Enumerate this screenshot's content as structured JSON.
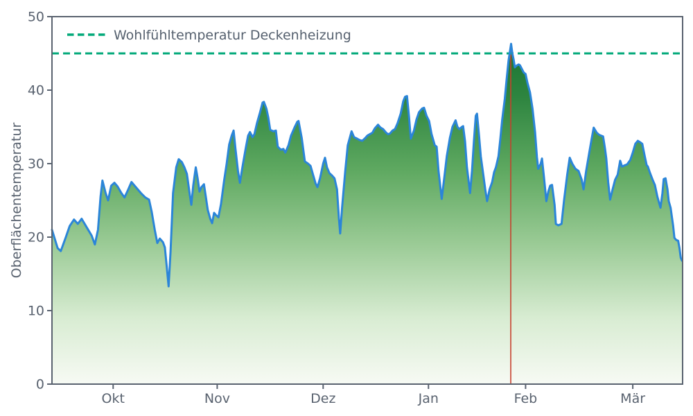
{
  "chart_data": {
    "type": "area",
    "title": "",
    "xlabel": "",
    "ylabel": "Oberflächentemperatur",
    "ylim": [
      0,
      50
    ],
    "grid": false,
    "y_ticks": [
      0,
      10,
      20,
      30,
      40,
      50
    ],
    "x_ticks": [
      {
        "label": "Okt",
        "pos": 0.097
      },
      {
        "label": "Nov",
        "pos": 0.262
      },
      {
        "label": "Dez",
        "pos": 0.43
      },
      {
        "label": "Jan",
        "pos": 0.597
      },
      {
        "label": "Feb",
        "pos": 0.751
      },
      {
        "label": "Mär",
        "pos": 0.921
      }
    ],
    "legend": {
      "label": "Wohlfühltemperatur Deckenheizung",
      "position": "upper-left",
      "style": "dashed"
    },
    "reference_line": {
      "value": 45,
      "style": "dashed",
      "color": "#00A878",
      "label": "Wohlfühltemperatur Deckenheizung"
    },
    "event_line": {
      "pos": 0.7275,
      "top_value": 46.3,
      "color": "#C7402E"
    },
    "colors": {
      "line": "#2B85D8",
      "reference": "#00A878",
      "event": "#C7402E",
      "axis": "#59626F",
      "gradient_stops": [
        [
          "0%",
          "#0F6A2B"
        ],
        [
          "22%",
          "#2E8540"
        ],
        [
          "42%",
          "#5FA961"
        ],
        [
          "62%",
          "#9BCB96"
        ],
        [
          "82%",
          "#D8ECD2"
        ],
        [
          "100%",
          "#F7FAF4"
        ]
      ]
    },
    "series": [
      {
        "name": "Oberflächentemperatur",
        "points": [
          [
            0.0,
            21.0
          ],
          [
            0.009,
            18.5
          ],
          [
            0.014,
            18.1
          ],
          [
            0.022,
            20.0
          ],
          [
            0.028,
            21.5
          ],
          [
            0.035,
            22.4
          ],
          [
            0.041,
            21.8
          ],
          [
            0.047,
            22.5
          ],
          [
            0.056,
            21.2
          ],
          [
            0.063,
            20.2
          ],
          [
            0.068,
            19.0
          ],
          [
            0.073,
            21.0
          ],
          [
            0.077,
            25.5
          ],
          [
            0.08,
            27.7
          ],
          [
            0.085,
            26.0
          ],
          [
            0.089,
            25.0
          ],
          [
            0.094,
            27.0
          ],
          [
            0.099,
            27.4
          ],
          [
            0.104,
            26.9
          ],
          [
            0.11,
            26.0
          ],
          [
            0.115,
            25.4
          ],
          [
            0.121,
            26.5
          ],
          [
            0.126,
            27.5
          ],
          [
            0.133,
            26.8
          ],
          [
            0.141,
            26.0
          ],
          [
            0.148,
            25.4
          ],
          [
            0.154,
            25.1
          ],
          [
            0.158,
            23.5
          ],
          [
            0.163,
            21.0
          ],
          [
            0.167,
            19.2
          ],
          [
            0.171,
            19.8
          ],
          [
            0.176,
            19.3
          ],
          [
            0.179,
            18.6
          ],
          [
            0.182,
            16.0
          ],
          [
            0.185,
            13.3
          ],
          [
            0.188,
            18.0
          ],
          [
            0.192,
            26.0
          ],
          [
            0.197,
            29.5
          ],
          [
            0.201,
            30.6
          ],
          [
            0.206,
            30.2
          ],
          [
            0.21,
            29.5
          ],
          [
            0.214,
            28.6
          ],
          [
            0.219,
            25.5
          ],
          [
            0.221,
            24.4
          ],
          [
            0.224,
            27.0
          ],
          [
            0.228,
            29.5
          ],
          [
            0.231,
            28.0
          ],
          [
            0.234,
            26.2
          ],
          [
            0.237,
            26.8
          ],
          [
            0.241,
            27.2
          ],
          [
            0.244,
            25.5
          ],
          [
            0.247,
            23.7
          ],
          [
            0.251,
            22.5
          ],
          [
            0.254,
            21.9
          ],
          [
            0.257,
            23.3
          ],
          [
            0.26,
            23.0
          ],
          [
            0.264,
            22.7
          ],
          [
            0.268,
            24.5
          ],
          [
            0.273,
            27.7
          ],
          [
            0.277,
            30.0
          ],
          [
            0.281,
            32.6
          ],
          [
            0.285,
            33.8
          ],
          [
            0.288,
            34.5
          ],
          [
            0.291,
            32.0
          ],
          [
            0.295,
            29.0
          ],
          [
            0.298,
            27.4
          ],
          [
            0.302,
            29.5
          ],
          [
            0.307,
            32.0
          ],
          [
            0.311,
            33.8
          ],
          [
            0.314,
            34.3
          ],
          [
            0.318,
            33.6
          ],
          [
            0.321,
            34.0
          ],
          [
            0.325,
            35.5
          ],
          [
            0.33,
            37.0
          ],
          [
            0.334,
            38.3
          ],
          [
            0.336,
            38.4
          ],
          [
            0.34,
            37.5
          ],
          [
            0.343,
            36.3
          ],
          [
            0.346,
            34.6
          ],
          [
            0.351,
            34.4
          ],
          [
            0.355,
            34.5
          ],
          [
            0.358,
            32.3
          ],
          [
            0.363,
            31.9
          ],
          [
            0.367,
            32.0
          ],
          [
            0.37,
            31.5
          ],
          [
            0.375,
            32.5
          ],
          [
            0.379,
            33.8
          ],
          [
            0.385,
            35.0
          ],
          [
            0.389,
            35.7
          ],
          [
            0.391,
            35.8
          ],
          [
            0.396,
            33.5
          ],
          [
            0.401,
            30.3
          ],
          [
            0.406,
            30.0
          ],
          [
            0.41,
            29.7
          ],
          [
            0.414,
            28.5
          ],
          [
            0.418,
            27.3
          ],
          [
            0.421,
            26.8
          ],
          [
            0.425,
            28.0
          ],
          [
            0.43,
            30.0
          ],
          [
            0.433,
            30.8
          ],
          [
            0.436,
            29.5
          ],
          [
            0.44,
            28.7
          ],
          [
            0.444,
            28.4
          ],
          [
            0.448,
            28.0
          ],
          [
            0.452,
            26.5
          ],
          [
            0.455,
            22.5
          ],
          [
            0.457,
            20.5
          ],
          [
            0.46,
            24.0
          ],
          [
            0.465,
            29.0
          ],
          [
            0.469,
            32.5
          ],
          [
            0.475,
            34.4
          ],
          [
            0.479,
            33.6
          ],
          [
            0.484,
            33.4
          ],
          [
            0.488,
            33.2
          ],
          [
            0.492,
            33.1
          ],
          [
            0.497,
            33.5
          ],
          [
            0.5,
            33.8
          ],
          [
            0.504,
            34.0
          ],
          [
            0.508,
            34.2
          ],
          [
            0.512,
            34.8
          ],
          [
            0.517,
            35.3
          ],
          [
            0.521,
            34.9
          ],
          [
            0.525,
            34.7
          ],
          [
            0.53,
            34.2
          ],
          [
            0.533,
            34.0
          ],
          [
            0.536,
            34.1
          ],
          [
            0.54,
            34.5
          ],
          [
            0.544,
            34.7
          ],
          [
            0.548,
            35.5
          ],
          [
            0.553,
            36.8
          ],
          [
            0.557,
            38.5
          ],
          [
            0.56,
            39.1
          ],
          [
            0.563,
            39.2
          ],
          [
            0.566,
            36.5
          ],
          [
            0.569,
            33.4
          ],
          [
            0.574,
            34.5
          ],
          [
            0.578,
            36.0
          ],
          [
            0.582,
            37.0
          ],
          [
            0.587,
            37.5
          ],
          [
            0.59,
            37.6
          ],
          [
            0.594,
            36.5
          ],
          [
            0.598,
            35.8
          ],
          [
            0.602,
            34.0
          ],
          [
            0.607,
            32.5
          ],
          [
            0.61,
            32.3
          ],
          [
            0.613,
            29.0
          ],
          [
            0.618,
            25.2
          ],
          [
            0.622,
            28.0
          ],
          [
            0.626,
            31.0
          ],
          [
            0.631,
            33.5
          ],
          [
            0.635,
            35.0
          ],
          [
            0.64,
            35.9
          ],
          [
            0.643,
            35.0
          ],
          [
            0.646,
            34.7
          ],
          [
            0.65,
            35.0
          ],
          [
            0.652,
            35.1
          ],
          [
            0.655,
            33.0
          ],
          [
            0.658,
            29.5
          ],
          [
            0.663,
            26.0
          ],
          [
            0.666,
            29.0
          ],
          [
            0.669,
            33.0
          ],
          [
            0.672,
            36.5
          ],
          [
            0.674,
            36.8
          ],
          [
            0.677,
            34.0
          ],
          [
            0.68,
            31.0
          ],
          [
            0.684,
            28.5
          ],
          [
            0.687,
            26.5
          ],
          [
            0.69,
            24.9
          ],
          [
            0.694,
            26.5
          ],
          [
            0.698,
            27.5
          ],
          [
            0.701,
            28.8
          ],
          [
            0.704,
            29.5
          ],
          [
            0.708,
            31.0
          ],
          [
            0.711,
            33.4
          ],
          [
            0.714,
            36.0
          ],
          [
            0.718,
            38.8
          ],
          [
            0.721,
            41.5
          ],
          [
            0.724,
            44.0
          ],
          [
            0.728,
            46.3
          ],
          [
            0.73,
            45.0
          ],
          [
            0.732,
            44.2
          ],
          [
            0.734,
            43.1
          ],
          [
            0.736,
            43.3
          ],
          [
            0.74,
            43.5
          ],
          [
            0.742,
            43.4
          ],
          [
            0.745,
            42.9
          ],
          [
            0.748,
            42.4
          ],
          [
            0.751,
            42.2
          ],
          [
            0.754,
            41.0
          ],
          [
            0.758,
            39.7
          ],
          [
            0.762,
            37.5
          ],
          [
            0.766,
            34.3
          ],
          [
            0.769,
            30.9
          ],
          [
            0.771,
            29.3
          ],
          [
            0.775,
            30.0
          ],
          [
            0.777,
            30.7
          ],
          [
            0.78,
            28.3
          ],
          [
            0.784,
            24.9
          ],
          [
            0.787,
            26.2
          ],
          [
            0.79,
            27.0
          ],
          [
            0.793,
            27.1
          ],
          [
            0.797,
            24.4
          ],
          [
            0.799,
            21.8
          ],
          [
            0.803,
            21.6
          ],
          [
            0.808,
            21.8
          ],
          [
            0.812,
            25.0
          ],
          [
            0.817,
            28.5
          ],
          [
            0.821,
            30.8
          ],
          [
            0.825,
            30.0
          ],
          [
            0.83,
            29.3
          ],
          [
            0.835,
            29.0
          ],
          [
            0.84,
            27.8
          ],
          [
            0.843,
            26.5
          ],
          [
            0.847,
            29.0
          ],
          [
            0.852,
            31.5
          ],
          [
            0.856,
            33.5
          ],
          [
            0.859,
            34.9
          ],
          [
            0.864,
            34.2
          ],
          [
            0.868,
            33.9
          ],
          [
            0.874,
            33.7
          ],
          [
            0.877,
            32.0
          ],
          [
            0.879,
            30.7
          ],
          [
            0.882,
            27.5
          ],
          [
            0.885,
            25.1
          ],
          [
            0.889,
            26.5
          ],
          [
            0.893,
            27.8
          ],
          [
            0.897,
            28.5
          ],
          [
            0.901,
            30.4
          ],
          [
            0.904,
            29.6
          ],
          [
            0.909,
            29.8
          ],
          [
            0.912,
            29.9
          ],
          [
            0.917,
            30.5
          ],
          [
            0.921,
            31.5
          ],
          [
            0.925,
            32.7
          ],
          [
            0.929,
            33.1
          ],
          [
            0.933,
            32.9
          ],
          [
            0.936,
            32.7
          ],
          [
            0.94,
            31.0
          ],
          [
            0.943,
            29.8
          ],
          [
            0.945,
            29.6
          ],
          [
            0.948,
            28.8
          ],
          [
            0.953,
            27.7
          ],
          [
            0.956,
            27.1
          ],
          [
            0.96,
            25.5
          ],
          [
            0.965,
            24.0
          ],
          [
            0.968,
            26.0
          ],
          [
            0.97,
            27.9
          ],
          [
            0.973,
            28.0
          ],
          [
            0.976,
            26.5
          ],
          [
            0.978,
            24.9
          ],
          [
            0.981,
            24.0
          ],
          [
            0.985,
            21.5
          ],
          [
            0.987,
            19.9
          ],
          [
            0.99,
            19.6
          ],
          [
            0.993,
            19.5
          ],
          [
            0.995,
            18.5
          ],
          [
            0.997,
            17.2
          ],
          [
            0.999,
            16.8
          ]
        ]
      }
    ]
  }
}
